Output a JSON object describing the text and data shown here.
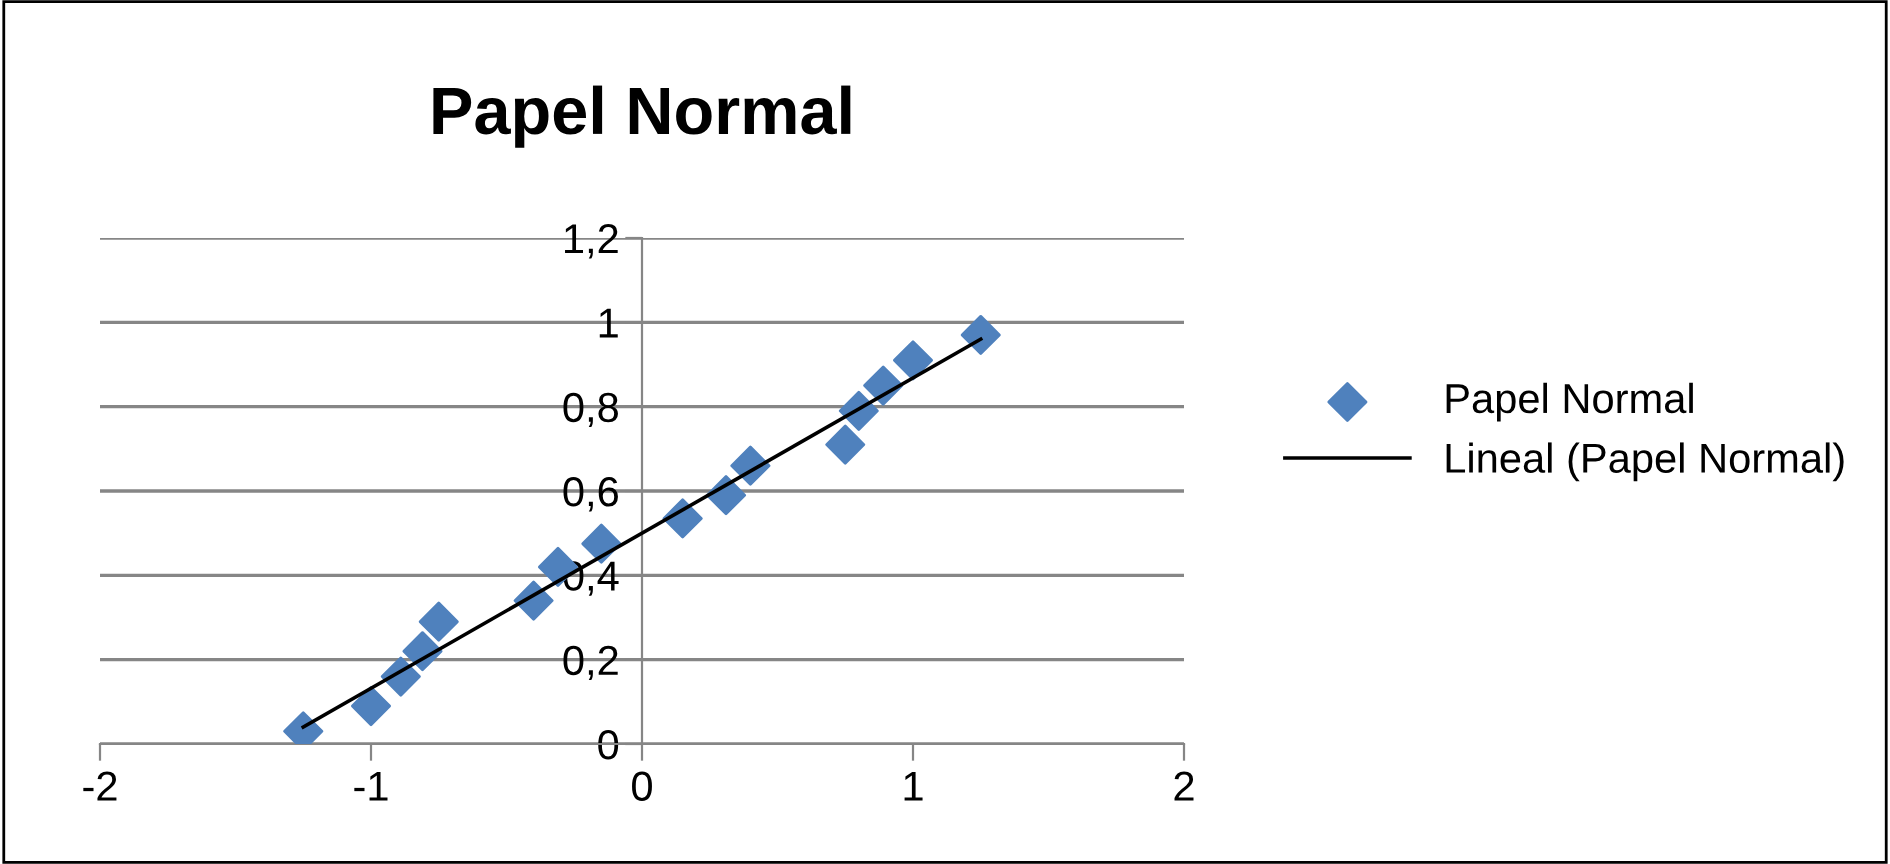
{
  "chart_data": {
    "type": "scatter",
    "title": "Papel Normal",
    "series": [
      {
        "name": "Papel Normal",
        "color": "#4f81bd",
        "marker": "diamond",
        "x": [
          -1.25,
          -1.0,
          -0.89,
          -0.81,
          -0.75,
          -0.4,
          -0.31,
          -0.15,
          0.15,
          0.31,
          0.4,
          0.75,
          0.8,
          0.89,
          1.0,
          1.25
        ],
        "values": [
          0.03,
          0.09,
          0.16,
          0.22,
          0.29,
          0.34,
          0.42,
          0.475,
          0.535,
          0.59,
          0.66,
          0.71,
          0.79,
          0.85,
          0.91,
          0.97
        ]
      },
      {
        "name": "Lineal (Papel Normal)",
        "type": "line",
        "color": "#000000",
        "x": [
          -1.25,
          1.25
        ],
        "values": [
          0.04,
          0.96
        ]
      }
    ],
    "xlim": [
      -2,
      2
    ],
    "xticks": [
      -2,
      -1,
      0,
      1,
      2
    ],
    "ylim": [
      0,
      1.2
    ],
    "yticks": [
      0,
      {
        "value": 0.2,
        "label": "0,2"
      },
      {
        "value": 0.4,
        "label": "0,4"
      },
      {
        "value": 0.6,
        "label": "0,6"
      },
      {
        "value": 0.8,
        "label": "0,8"
      },
      1,
      {
        "value": 1.2,
        "label": "1,2"
      }
    ],
    "grid": "y",
    "legend": "right"
  }
}
